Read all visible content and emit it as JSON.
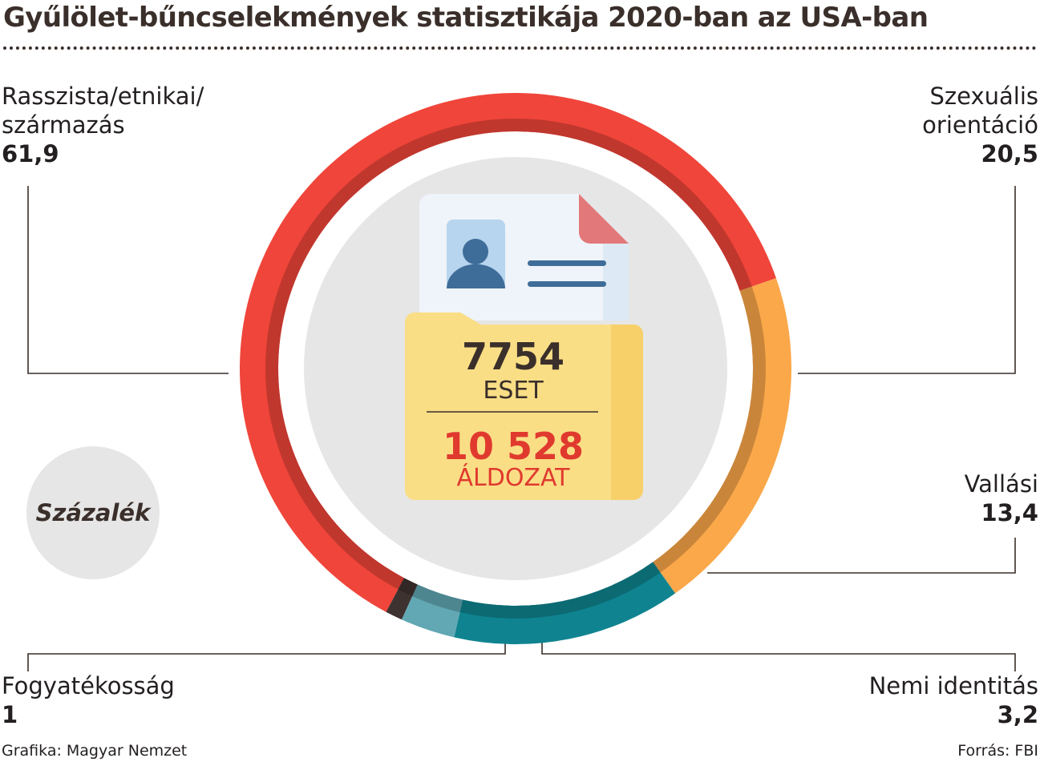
{
  "title": "Gyűlölet-bűncselekmények statisztikája 2020-ban az USA-ban",
  "badge": "Százalék",
  "center": {
    "cases_value": "7754",
    "cases_label": "ESET",
    "victims_value": "10 528",
    "victims_label": "ÁLDOZAT"
  },
  "footer": {
    "credit": "Grafika: Magyar Nemzet",
    "source": "Forrás: FBI"
  },
  "chart_data": {
    "type": "pie",
    "unit": "Százalék",
    "series": [
      {
        "name": "Rasszista/etnikai/ származás",
        "lines": [
          "Rasszista/etnikai/",
          "származás"
        ],
        "value": 61.9,
        "display": "61,9",
        "color": "#f0453a"
      },
      {
        "name": "Szexuális orientáció",
        "lines": [
          "Szexuális",
          "orientáció"
        ],
        "value": 20.5,
        "display": "20,5",
        "color": "#fba84a"
      },
      {
        "name": "Vallási",
        "lines": [
          "Vallási"
        ],
        "value": 13.4,
        "display": "13,4",
        "color": "#0f8490"
      },
      {
        "name": "Nemi identitás",
        "lines": [
          "Nemi identitás"
        ],
        "value": 3.2,
        "display": "3,2",
        "color": "#62a8b4"
      },
      {
        "name": "Fogyatékosság",
        "lines": [
          "Fogyatékosság"
        ],
        "value": 1,
        "display": "1",
        "color": "#3d3230"
      }
    ]
  }
}
